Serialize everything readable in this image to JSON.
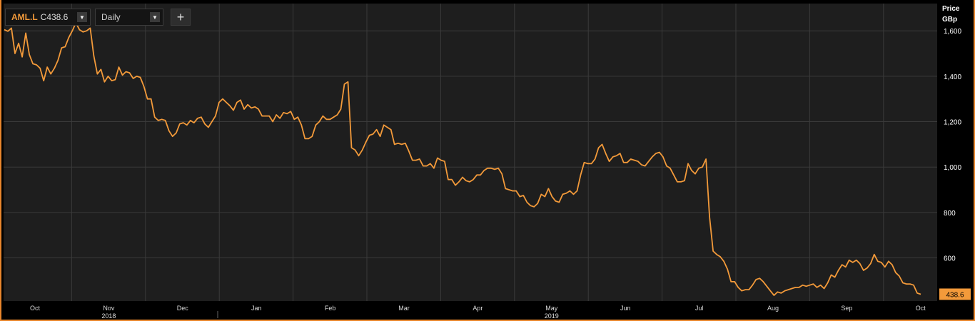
{
  "toolbar": {
    "ticker_symbol": "AML.L",
    "ticker_close": "C438.6",
    "interval": "Daily",
    "add_label": "+"
  },
  "axis": {
    "title_line1": "Price",
    "title_line2": "GBp"
  },
  "colors": {
    "line": "#f39a3a",
    "background": "#1e1e1e",
    "grid": "#3a3a3a"
  },
  "chart_data": {
    "type": "line",
    "title": "",
    "series": [
      {
        "values": [
          1605,
          1598,
          1612,
          1500,
          1545,
          1485,
          1590,
          1495,
          1455,
          1450,
          1435,
          1380,
          1440,
          1410,
          1435,
          1470,
          1525,
          1530,
          1570,
          1600,
          1635,
          1605,
          1595,
          1600,
          1612,
          1490,
          1410,
          1430,
          1375,
          1400,
          1380,
          1385,
          1440,
          1405,
          1420,
          1415,
          1390,
          1400,
          1395,
          1355,
          1300,
          1300,
          1220,
          1205,
          1210,
          1205,
          1160,
          1135,
          1150,
          1190,
          1195,
          1185,
          1205,
          1195,
          1215,
          1220,
          1190,
          1175,
          1200,
          1225,
          1285,
          1300,
          1285,
          1270,
          1250,
          1285,
          1295,
          1255,
          1275,
          1260,
          1265,
          1255,
          1225,
          1225,
          1225,
          1200,
          1230,
          1215,
          1240,
          1235,
          1245,
          1210,
          1220,
          1185,
          1125,
          1125,
          1135,
          1185,
          1200,
          1225,
          1210,
          1210,
          1220,
          1230,
          1255,
          1365,
          1375,
          1085,
          1075,
          1050,
          1075,
          1110,
          1140,
          1145,
          1165,
          1135,
          1185,
          1175,
          1165,
          1100,
          1105,
          1100,
          1105,
          1070,
          1030,
          1030,
          1035,
          1005,
          1005,
          1015,
          995,
          1040,
          1030,
          1025,
          945,
          945,
          920,
          935,
          955,
          940,
          935,
          945,
          965,
          965,
          985,
          995,
          995,
          990,
          995,
          970,
          905,
          900,
          895,
          895,
          870,
          875,
          845,
          830,
          825,
          840,
          880,
          870,
          905,
          870,
          850,
          845,
          880,
          885,
          895,
          880,
          895,
          965,
          1020,
          1015,
          1015,
          1035,
          1085,
          1100,
          1060,
          1025,
          1045,
          1050,
          1060,
          1020,
          1020,
          1035,
          1030,
          1025,
          1010,
          1005,
          1025,
          1045,
          1060,
          1065,
          1045,
          1005,
          995,
          965,
          935,
          935,
          940,
          1015,
          985,
          970,
          995,
          1000,
          1035,
          780,
          630,
          615,
          605,
          585,
          550,
          495,
          495,
          470,
          455,
          460,
          460,
          480,
          505,
          510,
          495,
          475,
          455,
          435,
          450,
          445,
          455,
          460,
          465,
          470,
          470,
          480,
          475,
          480,
          485,
          470,
          480,
          465,
          490,
          525,
          515,
          545,
          570,
          560,
          590,
          580,
          590,
          575,
          545,
          555,
          575,
          615,
          585,
          580,
          560,
          585,
          570,
          535,
          520,
          490,
          485,
          485,
          480,
          445,
          440
        ]
      }
    ],
    "last_value_label": "438.6",
    "ylim": [
      410,
      1720
    ],
    "y_ticks": [
      600,
      800,
      1000,
      1200,
      1400,
      1600
    ],
    "y_tick_labels": [
      "600",
      "800",
      "1,000",
      "1,200",
      "1,400",
      "1,600"
    ],
    "x_tick_labels": [
      "Oct",
      "Nov",
      "Dec",
      "Jan",
      "Feb",
      "Mar",
      "Apr",
      "May",
      "Jun",
      "Jul",
      "Aug",
      "Sep",
      "Oct"
    ],
    "year_labels": [
      {
        "label": "2018",
        "under_month_index": 1
      },
      {
        "label": "2019",
        "under_month_index": 7
      }
    ],
    "grid": true
  }
}
